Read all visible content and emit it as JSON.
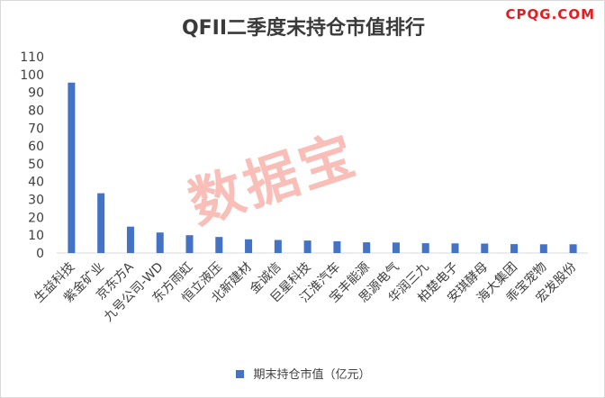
{
  "brand": "CPQG.COM",
  "watermark": "数据宝",
  "chart_data": {
    "type": "bar",
    "title": "QFII二季度末持仓市值排行",
    "categories": [
      "生益科技",
      "紫金矿业",
      "京东方A",
      "九号公司-WD",
      "东方雨虹",
      "恒立液压",
      "北新建材",
      "金诚信",
      "巨星科技",
      "江淮汽车",
      "宝丰能源",
      "思源电气",
      "华润三九",
      "柏楚电子",
      "安琪酵母",
      "海大集团",
      "乖宝宠物",
      "宏发股份"
    ],
    "series": [
      {
        "name": "期末持仓市值（亿元）",
        "values": [
          95.5,
          33.5,
          14.8,
          11.5,
          10.0,
          9.0,
          7.7,
          7.3,
          7.0,
          6.6,
          6.0,
          5.9,
          5.5,
          5.4,
          5.3,
          5.0,
          4.9,
          4.9
        ]
      }
    ],
    "ylim": [
      0,
      110
    ],
    "yticks": [
      0,
      10,
      20,
      30,
      40,
      50,
      60,
      70,
      80,
      90,
      100,
      110
    ],
    "grid": false,
    "legend": "bottom",
    "color": "#4472c4"
  }
}
